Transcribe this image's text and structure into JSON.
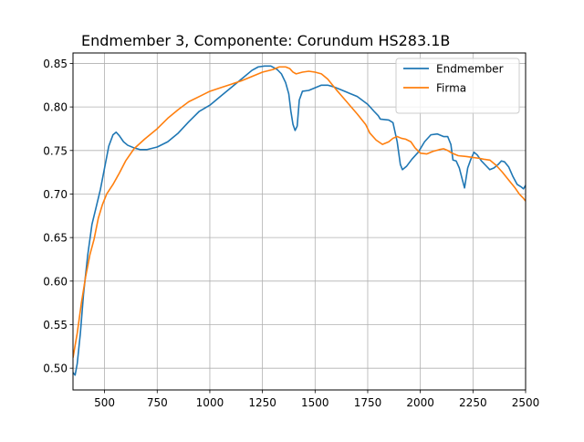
{
  "chart_data": {
    "type": "line",
    "title": "Endmember 3, Componente: Corundum HS283.1B",
    "xlabel": "",
    "ylabel": "",
    "xlim": [
      350,
      2500
    ],
    "ylim": [
      0.475,
      0.862
    ],
    "x_ticks": [
      "500",
      "750",
      "1000",
      "1250",
      "1500",
      "1750",
      "2000",
      "2250",
      "2500"
    ],
    "y_ticks": [
      "0.50",
      "0.55",
      "0.60",
      "0.65",
      "0.70",
      "0.75",
      "0.80",
      "0.85"
    ],
    "grid": true,
    "legend_position": "upper right",
    "series": [
      {
        "name": "Endmember",
        "color": "#1f77b4",
        "points": [
          [
            350,
            0.495
          ],
          [
            360,
            0.492
          ],
          [
            370,
            0.505
          ],
          [
            385,
            0.54
          ],
          [
            400,
            0.585
          ],
          [
            420,
            0.63
          ],
          [
            440,
            0.665
          ],
          [
            460,
            0.685
          ],
          [
            480,
            0.705
          ],
          [
            500,
            0.73
          ],
          [
            520,
            0.755
          ],
          [
            540,
            0.768
          ],
          [
            555,
            0.771
          ],
          [
            570,
            0.767
          ],
          [
            590,
            0.76
          ],
          [
            610,
            0.756
          ],
          [
            640,
            0.753
          ],
          [
            670,
            0.751
          ],
          [
            700,
            0.751
          ],
          [
            750,
            0.754
          ],
          [
            800,
            0.76
          ],
          [
            850,
            0.77
          ],
          [
            900,
            0.783
          ],
          [
            950,
            0.795
          ],
          [
            1000,
            0.802
          ],
          [
            1050,
            0.812
          ],
          [
            1100,
            0.822
          ],
          [
            1150,
            0.832
          ],
          [
            1200,
            0.842
          ],
          [
            1230,
            0.846
          ],
          [
            1260,
            0.847
          ],
          [
            1290,
            0.847
          ],
          [
            1320,
            0.843
          ],
          [
            1340,
            0.838
          ],
          [
            1360,
            0.828
          ],
          [
            1375,
            0.815
          ],
          [
            1385,
            0.795
          ],
          [
            1395,
            0.78
          ],
          [
            1405,
            0.773
          ],
          [
            1415,
            0.778
          ],
          [
            1425,
            0.808
          ],
          [
            1440,
            0.818
          ],
          [
            1470,
            0.819
          ],
          [
            1500,
            0.822
          ],
          [
            1530,
            0.825
          ],
          [
            1560,
            0.825
          ],
          [
            1590,
            0.823
          ],
          [
            1620,
            0.82
          ],
          [
            1650,
            0.817
          ],
          [
            1700,
            0.812
          ],
          [
            1750,
            0.803
          ],
          [
            1780,
            0.795
          ],
          [
            1800,
            0.79
          ],
          [
            1810,
            0.786
          ],
          [
            1850,
            0.785
          ],
          [
            1870,
            0.782
          ],
          [
            1890,
            0.76
          ],
          [
            1905,
            0.734
          ],
          [
            1915,
            0.728
          ],
          [
            1935,
            0.732
          ],
          [
            1960,
            0.74
          ],
          [
            1990,
            0.748
          ],
          [
            2020,
            0.76
          ],
          [
            2050,
            0.768
          ],
          [
            2080,
            0.769
          ],
          [
            2110,
            0.766
          ],
          [
            2130,
            0.766
          ],
          [
            2145,
            0.757
          ],
          [
            2155,
            0.739
          ],
          [
            2170,
            0.738
          ],
          [
            2185,
            0.73
          ],
          [
            2200,
            0.716
          ],
          [
            2210,
            0.707
          ],
          [
            2225,
            0.73
          ],
          [
            2240,
            0.74
          ],
          [
            2255,
            0.748
          ],
          [
            2270,
            0.745
          ],
          [
            2290,
            0.738
          ],
          [
            2310,
            0.733
          ],
          [
            2330,
            0.728
          ],
          [
            2350,
            0.73
          ],
          [
            2370,
            0.734
          ],
          [
            2385,
            0.738
          ],
          [
            2400,
            0.737
          ],
          [
            2420,
            0.731
          ],
          [
            2440,
            0.72
          ],
          [
            2460,
            0.711
          ],
          [
            2480,
            0.708
          ],
          [
            2490,
            0.706
          ],
          [
            2500,
            0.71
          ]
        ]
      },
      {
        "name": "Firma",
        "color": "#ff7f0e",
        "points": [
          [
            350,
            0.512
          ],
          [
            370,
            0.54
          ],
          [
            390,
            0.575
          ],
          [
            410,
            0.605
          ],
          [
            430,
            0.63
          ],
          [
            450,
            0.648
          ],
          [
            470,
            0.672
          ],
          [
            490,
            0.688
          ],
          [
            510,
            0.7
          ],
          [
            540,
            0.711
          ],
          [
            570,
            0.724
          ],
          [
            600,
            0.738
          ],
          [
            640,
            0.752
          ],
          [
            690,
            0.763
          ],
          [
            750,
            0.775
          ],
          [
            800,
            0.787
          ],
          [
            850,
            0.797
          ],
          [
            900,
            0.806
          ],
          [
            950,
            0.812
          ],
          [
            1000,
            0.818
          ],
          [
            1050,
            0.822
          ],
          [
            1100,
            0.826
          ],
          [
            1150,
            0.83
          ],
          [
            1200,
            0.835
          ],
          [
            1250,
            0.84
          ],
          [
            1300,
            0.843
          ],
          [
            1330,
            0.846
          ],
          [
            1360,
            0.846
          ],
          [
            1380,
            0.844
          ],
          [
            1395,
            0.84
          ],
          [
            1410,
            0.838
          ],
          [
            1440,
            0.84
          ],
          [
            1470,
            0.841
          ],
          [
            1500,
            0.84
          ],
          [
            1530,
            0.838
          ],
          [
            1560,
            0.832
          ],
          [
            1600,
            0.82
          ],
          [
            1650,
            0.806
          ],
          [
            1700,
            0.792
          ],
          [
            1740,
            0.78
          ],
          [
            1760,
            0.77
          ],
          [
            1790,
            0.762
          ],
          [
            1820,
            0.757
          ],
          [
            1850,
            0.76
          ],
          [
            1870,
            0.764
          ],
          [
            1890,
            0.766
          ],
          [
            1910,
            0.764
          ],
          [
            1930,
            0.763
          ],
          [
            1955,
            0.76
          ],
          [
            1975,
            0.753
          ],
          [
            2000,
            0.747
          ],
          [
            2030,
            0.746
          ],
          [
            2060,
            0.749
          ],
          [
            2090,
            0.751
          ],
          [
            2110,
            0.752
          ],
          [
            2130,
            0.75
          ],
          [
            2150,
            0.747
          ],
          [
            2180,
            0.744
          ],
          [
            2220,
            0.743
          ],
          [
            2250,
            0.742
          ],
          [
            2280,
            0.741
          ],
          [
            2300,
            0.74
          ],
          [
            2330,
            0.739
          ],
          [
            2360,
            0.733
          ],
          [
            2390,
            0.725
          ],
          [
            2420,
            0.716
          ],
          [
            2450,
            0.707
          ],
          [
            2470,
            0.7
          ],
          [
            2490,
            0.695
          ],
          [
            2500,
            0.692
          ]
        ]
      }
    ]
  }
}
